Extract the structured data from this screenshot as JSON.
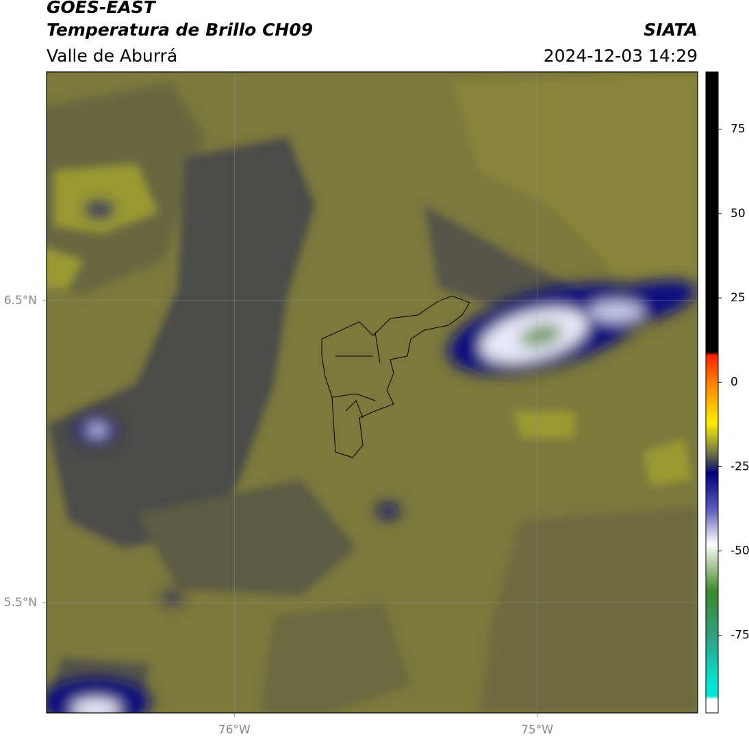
{
  "chart_data": {
    "type": "map",
    "title": "GOES-EAST",
    "subtitle": "Temperatura de Brillo CH09",
    "region": "Valle de Aburrá",
    "source": "SIATA",
    "datetime": "2024-12-03 14:29",
    "xlim": [
      -76.62,
      -74.47
    ],
    "ylim": [
      5.135,
      7.257
    ],
    "xticks": [
      {
        "value": -76,
        "label": "76°W"
      },
      {
        "value": -75,
        "label": "75°W"
      }
    ],
    "yticks": [
      {
        "value": 6.5,
        "label": "6.5°N"
      },
      {
        "value": 5.5,
        "label": "5.5°N"
      }
    ],
    "grid": true,
    "colorbar": {
      "lim": [
        -98,
        92
      ],
      "ticks": [
        75,
        50,
        25,
        0,
        -25,
        -50,
        -75
      ],
      "stops": [
        {
          "value": 92,
          "color": "#000000"
        },
        {
          "value": 9,
          "color": "#000000"
        },
        {
          "value": 8,
          "color": "#ff2000"
        },
        {
          "value": 0,
          "color": "#ff8000"
        },
        {
          "value": -12,
          "color": "#ffee00"
        },
        {
          "value": -18,
          "color": "#a0a030"
        },
        {
          "value": -23,
          "color": "#505050"
        },
        {
          "value": -27,
          "color": "#000080"
        },
        {
          "value": -38,
          "color": "#6060c0"
        },
        {
          "value": -48,
          "color": "#ffffff"
        },
        {
          "value": -55,
          "color": "#a0c090"
        },
        {
          "value": -62,
          "color": "#3a8a2a"
        },
        {
          "value": -75,
          "color": "#30a080"
        },
        {
          "value": -90,
          "color": "#00e8d8"
        },
        {
          "value": -93,
          "color": "#00e8d8"
        },
        {
          "value": -94,
          "color": "#ffffff"
        },
        {
          "value": -98,
          "color": "#ffffff"
        }
      ]
    }
  }
}
